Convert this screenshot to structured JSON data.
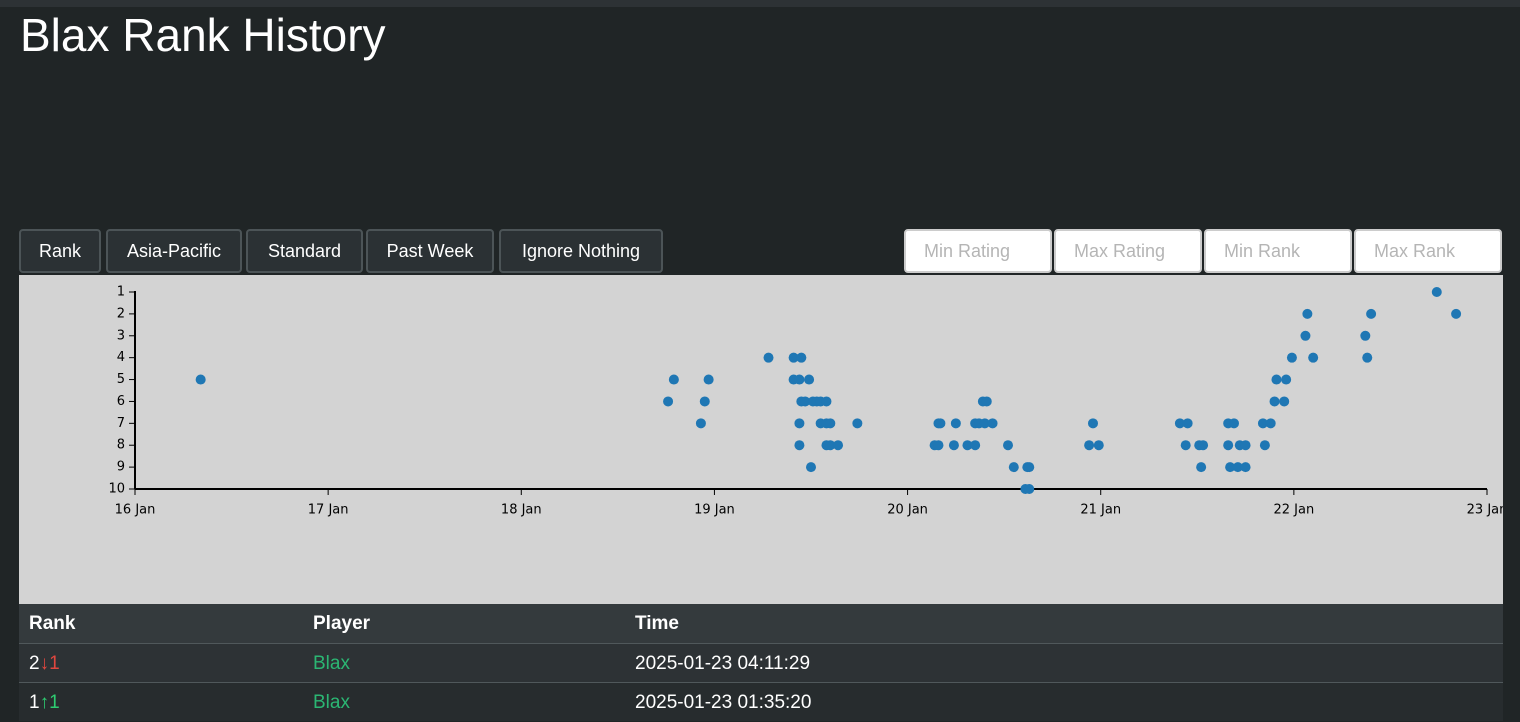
{
  "header": {
    "title": "Blax Rank History"
  },
  "controls": {
    "buttons": [
      "Rank",
      "Asia-Pacific",
      "Standard",
      "Past Week",
      "Ignore Nothing"
    ],
    "inputs": [
      "Min Rating",
      "Max Rating",
      "Min Rank",
      "Max Rank"
    ]
  },
  "chart_data": {
    "type": "scatter",
    "color": "#1f77b4",
    "y_inverted": true,
    "xlim": [
      16,
      23
    ],
    "xticks": [
      {
        "value": 16,
        "label": "16 Jan"
      },
      {
        "value": 17,
        "label": "17 Jan"
      },
      {
        "value": 18,
        "label": "18 Jan"
      },
      {
        "value": 19,
        "label": "19 Jan"
      },
      {
        "value": 20,
        "label": "20 Jan"
      },
      {
        "value": 21,
        "label": "21 Jan"
      },
      {
        "value": 22,
        "label": "22 Jan"
      },
      {
        "value": 23,
        "label": "23 Jan"
      }
    ],
    "ylim": [
      1,
      10
    ],
    "yticks": [
      1,
      2,
      3,
      4,
      5,
      6,
      7,
      8,
      9,
      10
    ],
    "x": [
      16.34,
      18.76,
      18.79,
      18.93,
      18.95,
      18.97,
      19.28,
      19.41,
      19.45,
      19.41,
      19.44,
      19.49,
      19.45,
      19.47,
      19.51,
      19.53,
      19.55,
      19.58,
      19.44,
      19.55,
      19.58,
      19.6,
      19.74,
      19.44,
      19.58,
      19.6,
      19.64,
      19.5,
      20.14,
      20.16,
      20.24,
      20.31,
      20.35,
      20.16,
      20.17,
      20.25,
      20.35,
      20.37,
      20.4,
      20.44,
      20.39,
      20.41,
      20.52,
      20.55,
      20.62,
      20.63,
      20.61,
      20.63,
      20.96,
      20.94,
      20.99,
      21.41,
      21.45,
      21.44,
      21.51,
      21.53,
      21.52,
      21.66,
      21.69,
      21.66,
      21.72,
      21.75,
      21.85,
      21.67,
      21.71,
      21.75,
      21.84,
      21.88,
      21.9,
      21.95,
      21.91,
      21.96,
      21.99,
      22.1,
      22.06,
      22.07,
      22.37,
      22.38,
      22.4,
      22.74,
      22.84
    ],
    "values": [
      5,
      6,
      5,
      7,
      6,
      5,
      4,
      4,
      4,
      5,
      5,
      5,
      6,
      6,
      6,
      6,
      6,
      6,
      7,
      7,
      7,
      7,
      7,
      8,
      8,
      8,
      8,
      9,
      8,
      8,
      8,
      8,
      8,
      7,
      7,
      7,
      7,
      7,
      7,
      7,
      6,
      6,
      8,
      9,
      9,
      9,
      10,
      10,
      7,
      8,
      8,
      7,
      7,
      8,
      8,
      8,
      9,
      7,
      7,
      8,
      8,
      8,
      8,
      9,
      9,
      9,
      7,
      7,
      6,
      6,
      5,
      5,
      4,
      4,
      3,
      2,
      3,
      4,
      2,
      1,
      2
    ]
  },
  "table": {
    "columns": [
      "Rank",
      "Player",
      "Time"
    ],
    "rows": [
      {
        "rank": "2",
        "change": "↓1",
        "player": "Blax",
        "time": "2025-01-23 04:11:29"
      },
      {
        "rank": "1",
        "change": "↑1",
        "player": "Blax",
        "time": "2025-01-23 01:35:20"
      }
    ]
  }
}
